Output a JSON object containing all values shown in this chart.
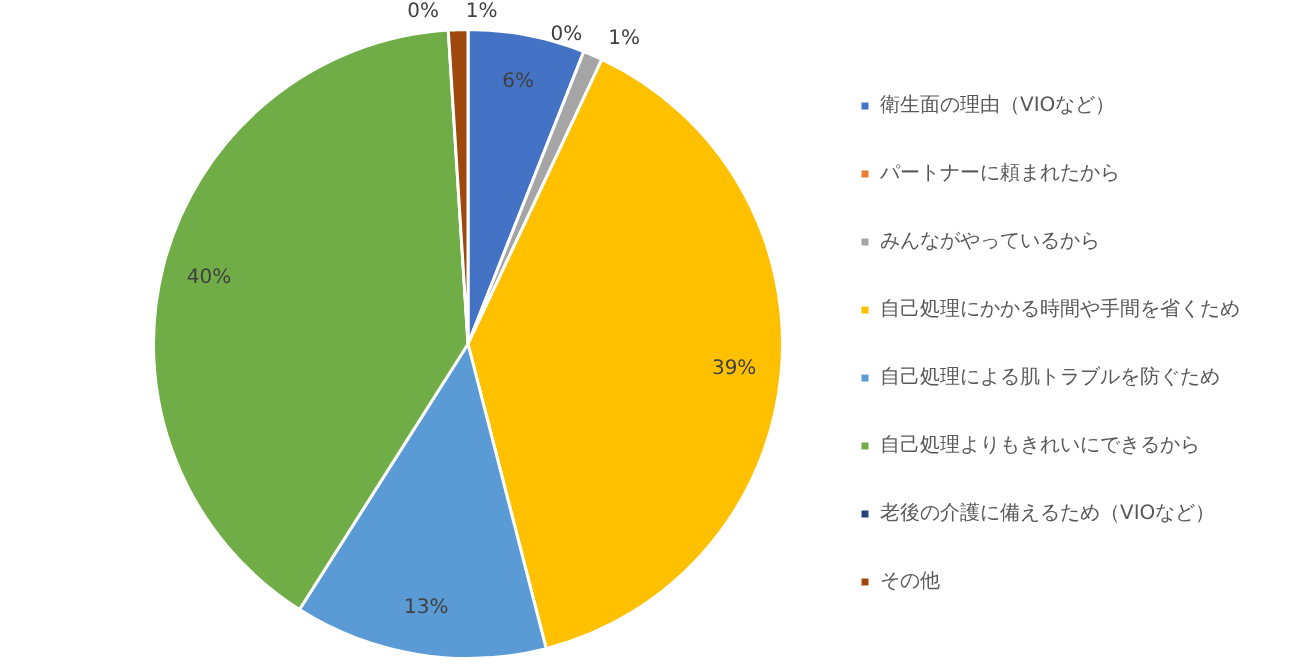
{
  "chart_data": {
    "type": "pie",
    "categories": [
      "衛生面の理由（VIOなど）",
      "パートナーに頼まれたから",
      "みんながやっているから",
      "自己処理にかかる時間や手間を省くため",
      "自己処理による肌トラブルを防ぐため",
      "自己処理よりもきれいにできるから",
      "老後の介護に備えるため（VIOなど）",
      "その他"
    ],
    "values": [
      6,
      0,
      1,
      39,
      13,
      40,
      0,
      1
    ],
    "colors": [
      "#4472c4",
      "#ed7d31",
      "#a5a5a5",
      "#ffc000",
      "#5b9bd5",
      "#70ad47",
      "#264478",
      "#9e480e"
    ],
    "value_labels": [
      "6%",
      "0%",
      "1%",
      "39%",
      "13%",
      "40%",
      "0%",
      "1%"
    ],
    "legend": "right"
  }
}
